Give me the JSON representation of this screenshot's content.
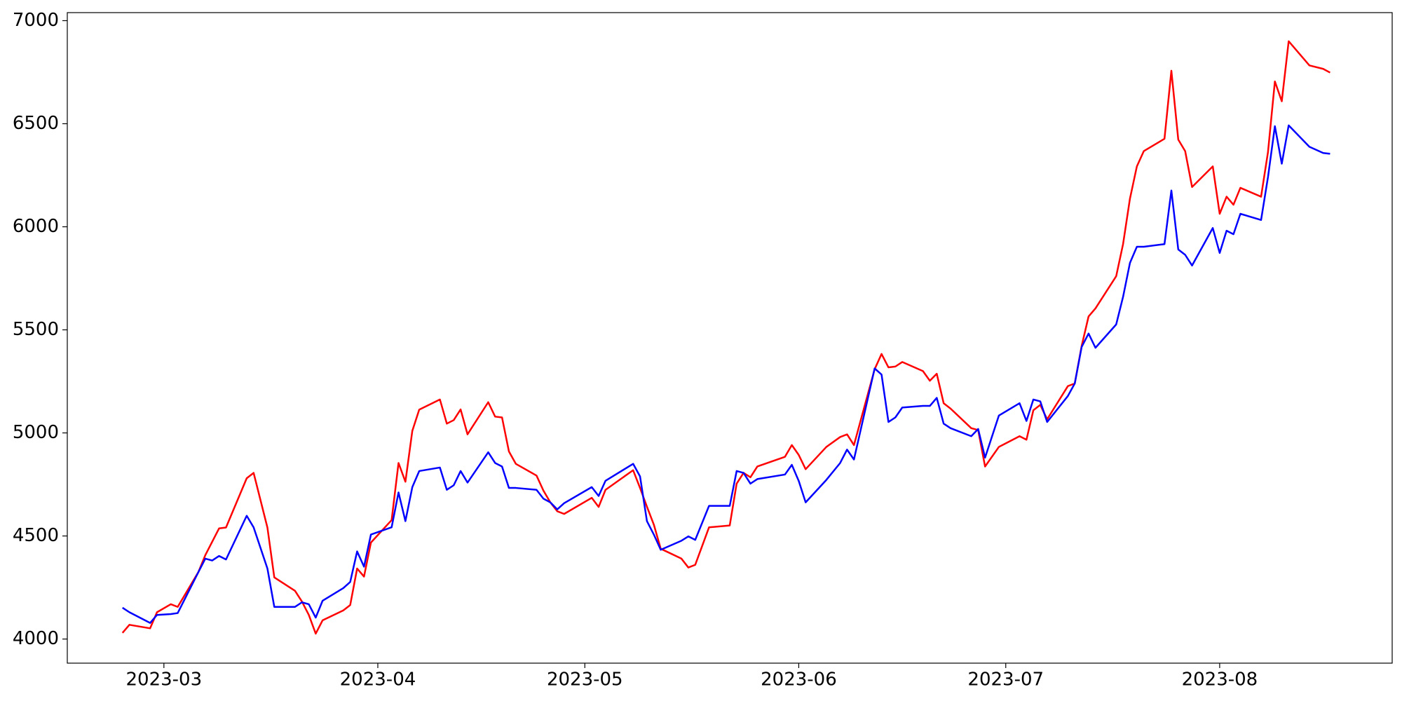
{
  "chart_data": {
    "type": "line",
    "x": [
      "2023-02-23",
      "2023-02-24",
      "2023-02-27",
      "2023-02-28",
      "2023-03-02",
      "2023-03-03",
      "2023-03-06",
      "2023-03-07",
      "2023-03-08",
      "2023-03-09",
      "2023-03-10",
      "2023-03-13",
      "2023-03-14",
      "2023-03-16",
      "2023-03-17",
      "2023-03-20",
      "2023-03-21",
      "2023-03-22",
      "2023-03-23",
      "2023-03-24",
      "2023-03-27",
      "2023-03-28",
      "2023-03-29",
      "2023-03-30",
      "2023-03-31",
      "2023-04-03",
      "2023-04-04",
      "2023-04-05",
      "2023-04-06",
      "2023-04-07",
      "2023-04-10",
      "2023-04-11",
      "2023-04-12",
      "2023-04-13",
      "2023-04-14",
      "2023-04-17",
      "2023-04-18",
      "2023-04-19",
      "2023-04-20",
      "2023-04-21",
      "2023-04-24",
      "2023-04-25",
      "2023-04-26",
      "2023-04-27",
      "2023-04-28",
      "2023-05-02",
      "2023-05-03",
      "2023-05-04",
      "2023-05-08",
      "2023-05-09",
      "2023-05-10",
      "2023-05-11",
      "2023-05-12",
      "2023-05-15",
      "2023-05-16",
      "2023-05-17",
      "2023-05-19",
      "2023-05-22",
      "2023-05-23",
      "2023-05-24",
      "2023-05-25",
      "2023-05-26",
      "2023-05-30",
      "2023-05-31",
      "2023-06-01",
      "2023-06-02",
      "2023-06-05",
      "2023-06-07",
      "2023-06-08",
      "2023-06-09",
      "2023-06-12",
      "2023-06-13",
      "2023-06-14",
      "2023-06-15",
      "2023-06-16",
      "2023-06-19",
      "2023-06-20",
      "2023-06-21",
      "2023-06-22",
      "2023-06-23",
      "2023-06-26",
      "2023-06-27",
      "2023-06-28",
      "2023-06-30",
      "2023-07-03",
      "2023-07-04",
      "2023-07-05",
      "2023-07-06",
      "2023-07-07",
      "2023-07-10",
      "2023-07-11",
      "2023-07-12",
      "2023-07-13",
      "2023-07-14",
      "2023-07-17",
      "2023-07-18",
      "2023-07-19",
      "2023-07-20",
      "2023-07-21",
      "2023-07-24",
      "2023-07-25",
      "2023-07-26",
      "2023-07-27",
      "2023-07-28",
      "2023-07-31",
      "2023-08-01",
      "2023-08-02",
      "2023-08-03",
      "2023-08-04",
      "2023-08-07",
      "2023-08-08",
      "2023-08-09",
      "2023-08-10",
      "2023-08-11",
      "2023-08-14",
      "2023-08-16",
      "2023-08-17"
    ],
    "series": [
      {
        "color": "#ff0000",
        "values": [
          4030,
          4069,
          4052,
          4130,
          4169,
          4156,
          4325,
          4407,
          4472,
          4537,
          4541,
          4780,
          4806,
          4541,
          4299,
          4234,
          4182,
          4117,
          4026,
          4091,
          4139,
          4165,
          4342,
          4303,
          4468,
          4577,
          4854,
          4763,
          5010,
          5113,
          5162,
          5045,
          5062,
          5114,
          4993,
          5149,
          5079,
          5075,
          4910,
          4850,
          4793,
          4720,
          4663,
          4620,
          4607,
          4685,
          4641,
          4724,
          4819,
          4733,
          4642,
          4555,
          4438,
          4390,
          4347,
          4360,
          4542,
          4551,
          4754,
          4806,
          4785,
          4837,
          4884,
          4941,
          4893,
          4824,
          4932,
          4980,
          4993,
          4941,
          5309,
          5383,
          5318,
          5322,
          5344,
          5300,
          5253,
          5287,
          5144,
          5118,
          5023,
          5014,
          4837,
          4932,
          4984,
          4967,
          5110,
          5136,
          5066,
          5227,
          5240,
          5422,
          5565,
          5604,
          5760,
          5916,
          6137,
          6293,
          6367,
          6427,
          6757,
          6423,
          6367,
          6193,
          6293,
          6063,
          6146,
          6107,
          6189,
          6146,
          6362,
          6705,
          6609,
          6900,
          6783,
          6766,
          6748
        ]
      },
      {
        "color": "#0000ff",
        "values": [
          4152,
          4130,
          4078,
          4117,
          4121,
          4126,
          4325,
          4390,
          4381,
          4403,
          4386,
          4598,
          4542,
          4342,
          4156,
          4156,
          4178,
          4169,
          4104,
          4186,
          4247,
          4277,
          4425,
          4351,
          4507,
          4542,
          4711,
          4572,
          4737,
          4815,
          4832,
          4724,
          4746,
          4815,
          4759,
          4906,
          4854,
          4837,
          4733,
          4733,
          4724,
          4681,
          4663,
          4629,
          4659,
          4737,
          4694,
          4768,
          4850,
          4789,
          4572,
          4507,
          4433,
          4477,
          4498,
          4481,
          4646,
          4646,
          4815,
          4806,
          4754,
          4776,
          4798,
          4845,
          4767,
          4663,
          4772,
          4854,
          4919,
          4871,
          5313,
          5283,
          5053,
          5075,
          5123,
          5131,
          5131,
          5170,
          5045,
          5023,
          4984,
          5019,
          4880,
          5084,
          5144,
          5058,
          5162,
          5153,
          5053,
          5179,
          5240,
          5417,
          5482,
          5413,
          5526,
          5660,
          5825,
          5903,
          5903,
          5916,
          6176,
          5890,
          5864,
          5812,
          5994,
          5873,
          5981,
          5964,
          6063,
          6033,
          6241,
          6488,
          6306,
          6492,
          6388,
          6358,
          6354
        ]
      }
    ],
    "xlim": [
      "2023-02-15",
      "2023-08-26"
    ],
    "xticks": [
      "2023-03",
      "2023-04",
      "2023-05",
      "2023-06",
      "2023-07",
      "2023-08"
    ],
    "ylim": [
      3883,
      7039
    ],
    "yticks": [
      4000,
      4500,
      5000,
      5500,
      6000,
      6500,
      7000
    ],
    "grid": false
  }
}
